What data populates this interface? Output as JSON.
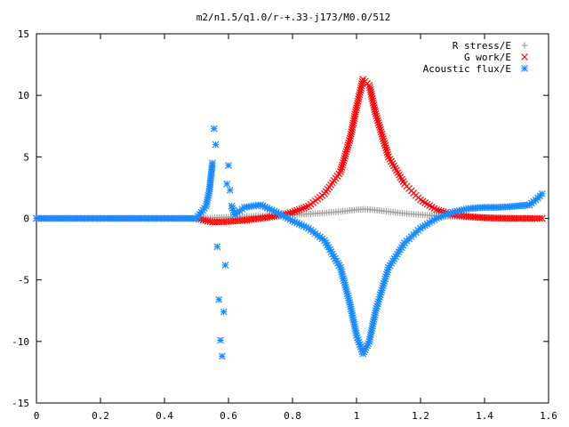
{
  "chart_data": {
    "type": "scatter",
    "title": "m2/n1.5/q1.0/r-+.33-j173/M0.0/512",
    "xlabel": "",
    "ylabel": "",
    "xlim": [
      0,
      1.6
    ],
    "ylim": [
      -15,
      15
    ],
    "x_ticks": [
      0,
      0.2,
      0.4,
      0.6,
      0.8,
      1,
      1.2,
      1.4,
      1.6
    ],
    "x_tick_labels": [
      "0",
      "0.2",
      "0.4",
      "0.6",
      "0.8",
      "1",
      "1.2",
      "1.4",
      "1.6"
    ],
    "y_ticks": [
      -15,
      -10,
      -5,
      0,
      5,
      10,
      15
    ],
    "y_tick_labels": [
      "-15",
      "-10",
      "-5",
      "0",
      "5",
      "10",
      "15"
    ],
    "grid": false,
    "legend_position": "top-right",
    "series": [
      {
        "name": "R stress/E",
        "marker": "plus",
        "color": "#a0a0a0",
        "points": [
          [
            0.0,
            0
          ],
          [
            0.1,
            0
          ],
          [
            0.2,
            0
          ],
          [
            0.3,
            0
          ],
          [
            0.4,
            0
          ],
          [
            0.5,
            0
          ],
          [
            0.55,
            0.05
          ],
          [
            0.6,
            0.1
          ],
          [
            0.65,
            0.15
          ],
          [
            0.7,
            0.2
          ],
          [
            0.75,
            0.25
          ],
          [
            0.8,
            0.3
          ],
          [
            0.85,
            0.35
          ],
          [
            0.9,
            0.45
          ],
          [
            0.95,
            0.55
          ],
          [
            1.0,
            0.7
          ],
          [
            1.02,
            0.75
          ],
          [
            1.05,
            0.7
          ],
          [
            1.1,
            0.55
          ],
          [
            1.15,
            0.4
          ],
          [
            1.2,
            0.3
          ],
          [
            1.25,
            0.2
          ],
          [
            1.3,
            0.15
          ],
          [
            1.35,
            0.1
          ],
          [
            1.4,
            0.05
          ],
          [
            1.45,
            0.03
          ],
          [
            1.5,
            0.02
          ],
          [
            1.55,
            0.01
          ],
          [
            1.58,
            0
          ]
        ]
      },
      {
        "name": "G work/E",
        "marker": "cross",
        "color": "#ff0000",
        "points": [
          [
            0.0,
            0
          ],
          [
            0.1,
            0
          ],
          [
            0.2,
            0
          ],
          [
            0.3,
            0
          ],
          [
            0.4,
            0
          ],
          [
            0.5,
            0
          ],
          [
            0.55,
            -0.3
          ],
          [
            0.6,
            -0.25
          ],
          [
            0.65,
            -0.15
          ],
          [
            0.7,
            0
          ],
          [
            0.75,
            0.2
          ],
          [
            0.8,
            0.5
          ],
          [
            0.85,
            1.0
          ],
          [
            0.9,
            2.0
          ],
          [
            0.95,
            3.8
          ],
          [
            0.98,
            6.5
          ],
          [
            1.0,
            9.0
          ],
          [
            1.02,
            11.3
          ],
          [
            1.04,
            10.8
          ],
          [
            1.06,
            8.5
          ],
          [
            1.1,
            5.0
          ],
          [
            1.15,
            2.8
          ],
          [
            1.2,
            1.5
          ],
          [
            1.25,
            0.7
          ],
          [
            1.3,
            0.3
          ],
          [
            1.35,
            0.15
          ],
          [
            1.4,
            0.05
          ],
          [
            1.45,
            0.02
          ],
          [
            1.5,
            0
          ],
          [
            1.55,
            0
          ],
          [
            1.58,
            0
          ]
        ]
      },
      {
        "name": "Acoustic flux/E",
        "marker": "star",
        "color": "#1a8cff",
        "points": [
          [
            0.0,
            0
          ],
          [
            0.1,
            0
          ],
          [
            0.2,
            0
          ],
          [
            0.3,
            0
          ],
          [
            0.4,
            0
          ],
          [
            0.5,
            0
          ],
          [
            0.53,
            1.0
          ],
          [
            0.54,
            2.2
          ],
          [
            0.55,
            4.5
          ],
          [
            0.555,
            7.3
          ],
          [
            0.56,
            6.0
          ],
          [
            0.565,
            -2.3
          ],
          [
            0.57,
            -6.6
          ],
          [
            0.575,
            -9.9
          ],
          [
            0.58,
            -11.2
          ],
          [
            0.585,
            -7.6
          ],
          [
            0.59,
            -3.8
          ],
          [
            0.595,
            2.8
          ],
          [
            0.6,
            4.3
          ],
          [
            0.605,
            2.3
          ],
          [
            0.61,
            1.0
          ],
          [
            0.62,
            0.3
          ],
          [
            0.65,
            0.9
          ],
          [
            0.7,
            1.1
          ],
          [
            0.75,
            0.5
          ],
          [
            0.8,
            -0.2
          ],
          [
            0.85,
            -0.8
          ],
          [
            0.9,
            -1.8
          ],
          [
            0.95,
            -4.0
          ],
          [
            0.98,
            -7.0
          ],
          [
            1.0,
            -9.5
          ],
          [
            1.02,
            -11.0
          ],
          [
            1.04,
            -10.0
          ],
          [
            1.06,
            -7.5
          ],
          [
            1.1,
            -4.0
          ],
          [
            1.15,
            -2.0
          ],
          [
            1.2,
            -0.8
          ],
          [
            1.25,
            0.0
          ],
          [
            1.3,
            0.5
          ],
          [
            1.35,
            0.8
          ],
          [
            1.4,
            0.9
          ],
          [
            1.45,
            0.9
          ],
          [
            1.5,
            1.0
          ],
          [
            1.54,
            1.1
          ],
          [
            1.56,
            1.5
          ],
          [
            1.58,
            2.0
          ]
        ]
      }
    ]
  }
}
